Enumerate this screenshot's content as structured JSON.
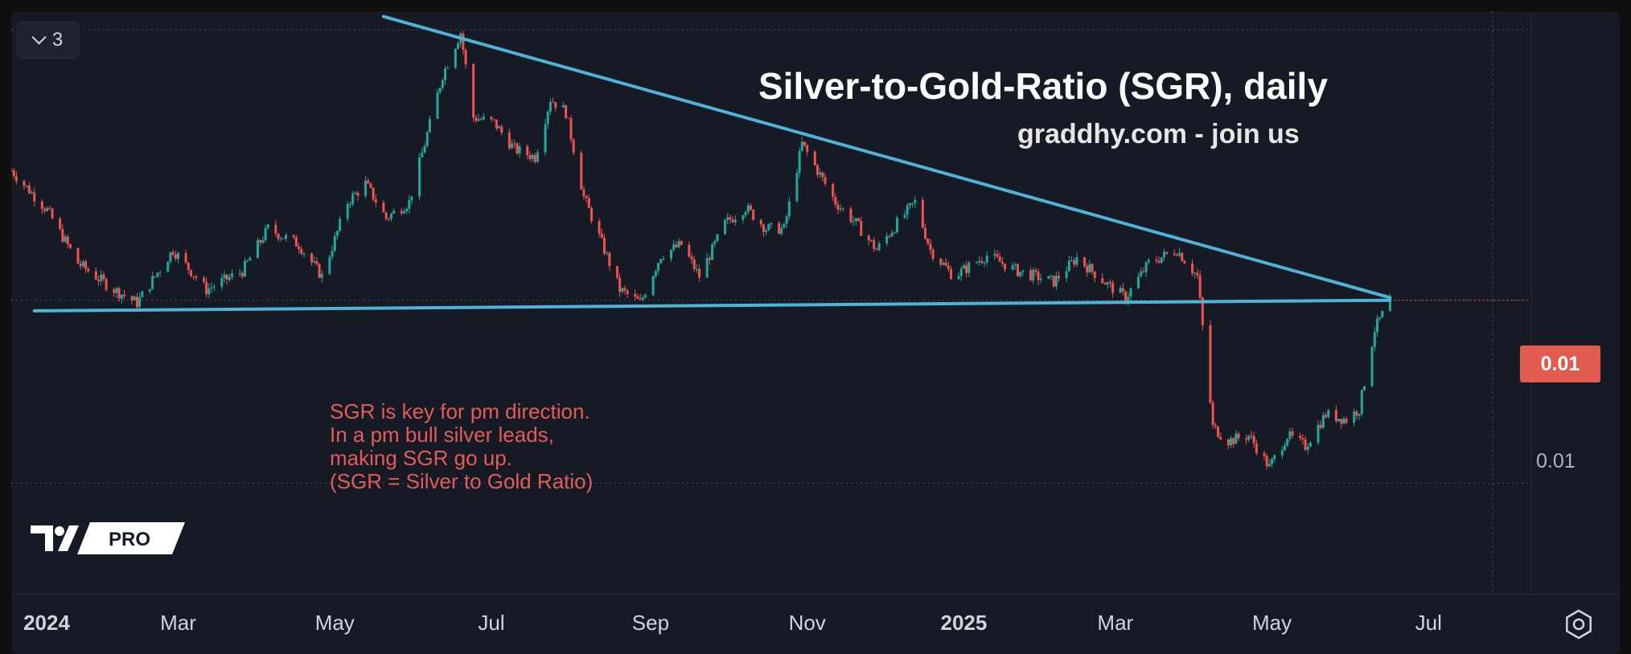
{
  "collapse_button": {
    "count": "3"
  },
  "title": "Silver-to-Gold-Ratio (SGR), daily",
  "subtitle": "graddhy.com - join us",
  "note_lines": [
    "SGR is key for pm direction.",
    "In a pm bull silver leads,",
    "making SGR go up.",
    "(SGR = Silver to Gold Ratio)"
  ],
  "logo_text": "PRO",
  "price_axis": {
    "last_value_label": "0.01",
    "tick_label": "0.01"
  },
  "colors": {
    "background": "#161a25",
    "up": "#26a69a",
    "down": "#ef5350",
    "trendline": "#4fb3d9",
    "note": "#e35b5b",
    "badge": "#e25b4f"
  },
  "chart_data": {
    "type": "candlestick",
    "title": "Silver-to-Gold-Ratio (SGR), daily",
    "x_ticks": [
      {
        "label": "2024",
        "date": "2024-01-01",
        "major": true
      },
      {
        "label": "Mar",
        "date": "2024-03-01",
        "major": false
      },
      {
        "label": "May",
        "date": "2024-05-01",
        "major": false
      },
      {
        "label": "Jul",
        "date": "2024-07-01",
        "major": false
      },
      {
        "label": "Sep",
        "date": "2024-09-01",
        "major": false
      },
      {
        "label": "Nov",
        "date": "2024-11-01",
        "major": false
      },
      {
        "label": "2025",
        "date": "2025-01-01",
        "major": true
      },
      {
        "label": "Mar",
        "date": "2025-03-01",
        "major": false
      },
      {
        "label": "May",
        "date": "2025-05-01",
        "major": false
      },
      {
        "label": "Jul",
        "date": "2025-07-01",
        "major": false
      }
    ],
    "xlim": [
      "2023-12-27",
      "2025-08-10"
    ],
    "ylim": [
      0.0103,
      0.0125
    ],
    "y_tick_labels": [
      "0.01",
      "0.01"
    ],
    "last_value": 0.01141,
    "series_points": [
      [
        "2023-12-27",
        0.0119
      ],
      [
        "2024-01-10",
        0.01175
      ],
      [
        "2024-01-22",
        0.01155
      ],
      [
        "2024-02-05",
        0.01145
      ],
      [
        "2024-02-14",
        0.0114
      ],
      [
        "2024-02-28",
        0.0116
      ],
      [
        "2024-03-12",
        0.01145
      ],
      [
        "2024-03-26",
        0.01152
      ],
      [
        "2024-04-05",
        0.01168
      ],
      [
        "2024-04-17",
        0.01162
      ],
      [
        "2024-04-26",
        0.0115
      ],
      [
        "2024-05-06",
        0.01178
      ],
      [
        "2024-05-13",
        0.01185
      ],
      [
        "2024-05-21",
        0.01172
      ],
      [
        "2024-05-30",
        0.01178
      ],
      [
        "2024-06-05",
        0.012
      ],
      [
        "2024-06-12",
        0.01226
      ],
      [
        "2024-06-19",
        0.01242
      ],
      [
        "2024-06-24",
        0.0121
      ],
      [
        "2024-07-02",
        0.01208
      ],
      [
        "2024-07-10",
        0.01198
      ],
      [
        "2024-07-18",
        0.01195
      ],
      [
        "2024-07-24",
        0.01217
      ],
      [
        "2024-07-30",
        0.01212
      ],
      [
        "2024-08-06",
        0.0118
      ],
      [
        "2024-08-14",
        0.0116
      ],
      [
        "2024-08-20",
        0.01145
      ],
      [
        "2024-08-28",
        0.0114
      ],
      [
        "2024-09-05",
        0.01158
      ],
      [
        "2024-09-13",
        0.01162
      ],
      [
        "2024-09-20",
        0.0115
      ],
      [
        "2024-09-30",
        0.0117
      ],
      [
        "2024-10-08",
        0.01176
      ],
      [
        "2024-10-16",
        0.01168
      ],
      [
        "2024-10-23",
        0.01168
      ],
      [
        "2024-10-30",
        0.012
      ],
      [
        "2024-11-05",
        0.0119
      ],
      [
        "2024-11-12",
        0.01178
      ],
      [
        "2024-11-20",
        0.0117
      ],
      [
        "2024-11-28",
        0.0116
      ],
      [
        "2024-12-06",
        0.0117
      ],
      [
        "2024-12-13",
        0.01178
      ],
      [
        "2024-12-19",
        0.0116
      ],
      [
        "2024-12-28",
        0.0115
      ],
      [
        "2025-01-10",
        0.01158
      ],
      [
        "2025-01-22",
        0.01152
      ],
      [
        "2025-02-05",
        0.01148
      ],
      [
        "2025-02-14",
        0.01157
      ],
      [
        "2025-02-26",
        0.01147
      ],
      [
        "2025-03-05",
        0.01142
      ],
      [
        "2025-03-14",
        0.01155
      ],
      [
        "2025-03-25",
        0.0116
      ],
      [
        "2025-04-02",
        0.0115
      ],
      [
        "2025-04-08",
        0.01093
      ],
      [
        "2025-04-14",
        0.01088
      ],
      [
        "2025-04-22",
        0.0109
      ],
      [
        "2025-04-30",
        0.01078
      ],
      [
        "2025-05-07",
        0.0109
      ],
      [
        "2025-05-14",
        0.01086
      ],
      [
        "2025-05-22",
        0.01098
      ],
      [
        "2025-05-30",
        0.01096
      ],
      [
        "2025-06-04",
        0.011
      ],
      [
        "2025-06-10",
        0.0113
      ],
      [
        "2025-06-16",
        0.01141
      ]
    ],
    "trendlines": [
      {
        "name": "resistance",
        "start": [
          "2024-05-20",
          0.01248
        ],
        "end": [
          "2025-06-16",
          0.01142
        ]
      },
      {
        "name": "support",
        "start": [
          "2024-01-05",
          0.01137
        ],
        "end": [
          "2025-06-16",
          0.01141
        ]
      }
    ],
    "grid_levels": [
      0.01243,
      0.01141,
      0.01072
    ],
    "grid_date": "2025-07-26",
    "last_date": "2025-06-16",
    "annotations": [
      "Silver-to-Gold-Ratio (SGR), daily",
      "graddhy.com - join us",
      "SGR is key for pm direction.",
      "In a pm bull silver leads,",
      "making SGR go up.",
      "(SGR = Silver to Gold Ratio)"
    ]
  }
}
